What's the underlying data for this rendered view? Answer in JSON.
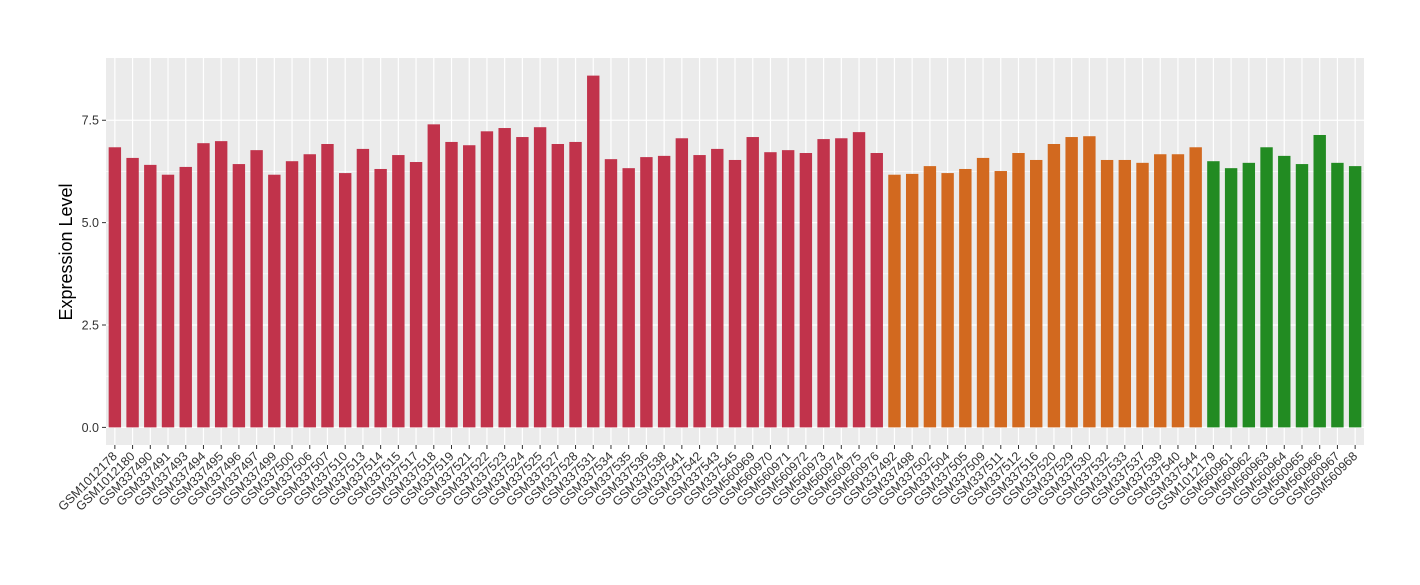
{
  "chart_data": {
    "type": "bar",
    "y_label": "Expression Level",
    "categories": [
      "GSM1012178",
      "GSM1012180",
      "GSM337490",
      "GSM337491",
      "GSM337493",
      "GSM337494",
      "GSM337495",
      "GSM337496",
      "GSM337497",
      "GSM337499",
      "GSM337500",
      "GSM337506",
      "GSM337507",
      "GSM337510",
      "GSM337513",
      "GSM337514",
      "GSM337515",
      "GSM337517",
      "GSM337518",
      "GSM337519",
      "GSM337521",
      "GSM337522",
      "GSM337523",
      "GSM337524",
      "GSM337525",
      "GSM337527",
      "GSM337528",
      "GSM337531",
      "GSM337534",
      "GSM337535",
      "GSM337536",
      "GSM337538",
      "GSM337541",
      "GSM337542",
      "GSM337543",
      "GSM337545",
      "GSM560969",
      "GSM560970",
      "GSM560971",
      "GSM560972",
      "GSM560973",
      "GSM560974",
      "GSM560975",
      "GSM560976",
      "GSM337492",
      "GSM337498",
      "GSM337502",
      "GSM337504",
      "GSM337505",
      "GSM337509",
      "GSM337511",
      "GSM337512",
      "GSM337516",
      "GSM337520",
      "GSM337529",
      "GSM337530",
      "GSM337532",
      "GSM337533",
      "GSM337537",
      "GSM337539",
      "GSM337540",
      "GSM337544",
      "GSM1012179",
      "GSM560961",
      "GSM560962",
      "GSM560963",
      "GSM560964",
      "GSM560965",
      "GSM560966",
      "GSM560967",
      "GSM560968"
    ],
    "values": [
      6.84,
      6.58,
      6.41,
      6.17,
      6.36,
      6.94,
      6.99,
      6.43,
      6.77,
      6.17,
      6.5,
      6.67,
      6.92,
      6.21,
      6.8,
      6.31,
      6.65,
      6.48,
      7.4,
      6.97,
      6.89,
      7.23,
      7.31,
      7.09,
      7.33,
      6.92,
      6.97,
      8.59,
      6.55,
      6.33,
      6.6,
      6.63,
      7.06,
      6.65,
      6.8,
      6.53,
      7.09,
      6.72,
      6.77,
      6.7,
      7.04,
      7.06,
      7.21,
      6.7,
      6.17,
      6.19,
      6.38,
      6.21,
      6.31,
      6.58,
      6.26,
      6.7,
      6.53,
      6.92,
      7.09,
      7.11,
      6.53,
      6.53,
      6.46,
      6.67,
      6.67,
      6.84,
      6.5,
      6.33,
      6.46,
      6.84,
      6.63,
      6.43,
      7.14,
      6.46,
      6.38
    ],
    "colors": [
      "#c1334b",
      "#c1334b",
      "#c1334b",
      "#c1334b",
      "#c1334b",
      "#c1334b",
      "#c1334b",
      "#c1334b",
      "#c1334b",
      "#c1334b",
      "#c1334b",
      "#c1334b",
      "#c1334b",
      "#c1334b",
      "#c1334b",
      "#c1334b",
      "#c1334b",
      "#c1334b",
      "#c1334b",
      "#c1334b",
      "#c1334b",
      "#c1334b",
      "#c1334b",
      "#c1334b",
      "#c1334b",
      "#c1334b",
      "#c1334b",
      "#c1334b",
      "#c1334b",
      "#c1334b",
      "#c1334b",
      "#c1334b",
      "#c1334b",
      "#c1334b",
      "#c1334b",
      "#c1334b",
      "#c1334b",
      "#c1334b",
      "#c1334b",
      "#c1334b",
      "#c1334b",
      "#c1334b",
      "#c1334b",
      "#c1334b",
      "#d2691f",
      "#d2691f",
      "#d2691f",
      "#d2691f",
      "#d2691f",
      "#d2691f",
      "#d2691f",
      "#d2691f",
      "#d2691f",
      "#d2691f",
      "#d2691f",
      "#d2691f",
      "#d2691f",
      "#d2691f",
      "#d2691f",
      "#d2691f",
      "#d2691f",
      "#d2691f",
      "#228b22",
      "#228b22",
      "#228b22",
      "#228b22",
      "#228b22",
      "#228b22",
      "#228b22",
      "#228b22",
      "#228b22"
    ],
    "ylim": [
      -0.43,
      9.02
    ],
    "yticks": [
      {
        "value": 0,
        "label": "0.0"
      },
      {
        "value": 2.5,
        "label": "2.5"
      },
      {
        "value": 5,
        "label": "5.0"
      },
      {
        "value": 7.5,
        "label": "7.5"
      }
    ],
    "grid": true
  }
}
